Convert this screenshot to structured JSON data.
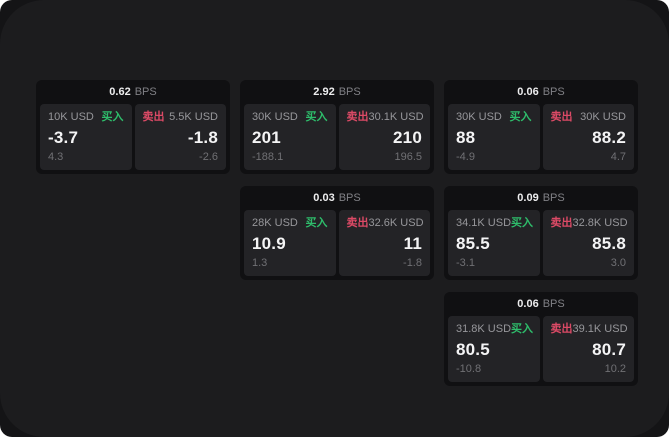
{
  "labels": {
    "bps_unit": "BPS",
    "buy": "买入",
    "sell": "卖出"
  },
  "colors": {
    "buy": "#2ebd6b",
    "sell": "#dc4a66",
    "backdrop": "#141416",
    "panel": "#1c1c1e",
    "card": "#101012",
    "pane": "#232326"
  },
  "cards": [
    {
      "col": 1,
      "row": 1,
      "bps": "0.62",
      "buy": {
        "amount": "10K USD",
        "value": "-3.7",
        "delta": "4.3"
      },
      "sell": {
        "amount": "5.5K USD",
        "value": "-1.8",
        "delta": "-2.6"
      }
    },
    {
      "col": 2,
      "row": 1,
      "bps": "2.92",
      "buy": {
        "amount": "30K USD",
        "value": "201",
        "delta": "-188.1"
      },
      "sell": {
        "amount": "30.1K USD",
        "value": "210",
        "delta": "196.5"
      }
    },
    {
      "col": 3,
      "row": 1,
      "bps": "0.06",
      "buy": {
        "amount": "30K USD",
        "value": "88",
        "delta": "-4.9"
      },
      "sell": {
        "amount": "30K USD",
        "value": "88.2",
        "delta": "4.7"
      }
    },
    {
      "col": 2,
      "row": 2,
      "bps": "0.03",
      "buy": {
        "amount": "28K USD",
        "value": "10.9",
        "delta": "1.3"
      },
      "sell": {
        "amount": "32.6K USD",
        "value": "11",
        "delta": "-1.8"
      }
    },
    {
      "col": 3,
      "row": 2,
      "bps": "0.09",
      "buy": {
        "amount": "34.1K USD",
        "value": "85.5",
        "delta": "-3.1"
      },
      "sell": {
        "amount": "32.8K USD",
        "value": "85.8",
        "delta": "3.0"
      }
    },
    {
      "col": 3,
      "row": 3,
      "bps": "0.06",
      "buy": {
        "amount": "31.8K USD",
        "value": "80.5",
        "delta": "-10.8"
      },
      "sell": {
        "amount": "39.1K USD",
        "value": "80.7",
        "delta": "10.2"
      }
    }
  ]
}
